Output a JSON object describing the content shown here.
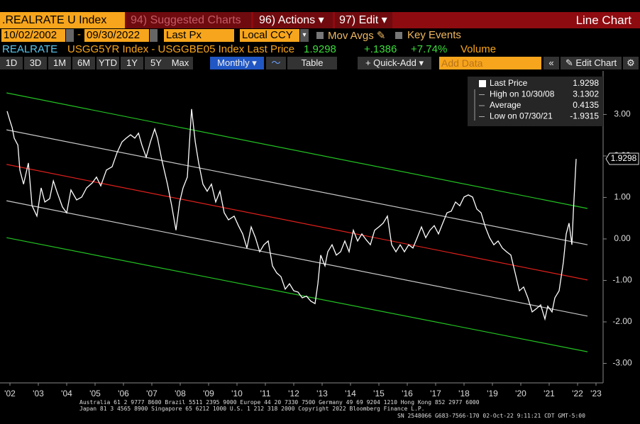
{
  "toolbar": {
    "security": ".REALRATE U Index",
    "suggested": "94) Suggested Charts",
    "actions": "96) Actions",
    "edit": "97) Edit",
    "view": "Line Chart"
  },
  "controls": {
    "start_date": "10/02/2002",
    "dash": "-",
    "end_date": "09/30/2022",
    "field": "Last Px",
    "currency": "Local CCY",
    "mov_avgs": "Mov Avgs",
    "key_events": "Key Events"
  },
  "ticker_line": {
    "name": "REALRATE",
    "description": "USGG5YR Index - USGGBE05 Index Last Price",
    "change": "+.1386",
    "pct_change": "+7.74%",
    "volume": "Volume"
  },
  "buttons": {
    "periods": [
      "1D",
      "3D",
      "1M",
      "6M",
      "YTD",
      "1Y",
      "5Y",
      "Max"
    ],
    "frequency": "Monthly",
    "table": "Table",
    "quick_add": "+ Quick-Add",
    "add_data": "Add Data",
    "edit_chart": "Edit Chart"
  },
  "footer": [
    "Australia 61 2 9777 8600 Brazil 5511 2395 9000 Europe 44 20 7330 7500 Germany 49 69 9204 1210 Hong Kong 852 2977 6000",
    "Japan 81 3 4565 8900      Singapore 65 6212 1000      U.S. 1 212 318 2000      Copyright 2022 Bloomberg Finance L.P.",
    "SN 2548066 G683-7566-170 02-Oct-22  9:11:21 CDT  GMT-5:00"
  ],
  "chart_data": {
    "type": "line",
    "xlim": [
      2002.5,
      2023.75
    ],
    "ylim": [
      -3.47,
      4.05
    ],
    "xticks": [
      {
        "value": 2002.85,
        "label": "'02"
      },
      {
        "value": 2003.85,
        "label": "'03"
      },
      {
        "value": 2004.85,
        "label": "'04"
      },
      {
        "value": 2005.85,
        "label": "'05"
      },
      {
        "value": 2006.85,
        "label": "'06"
      },
      {
        "value": 2007.85,
        "label": "'07"
      },
      {
        "value": 2008.85,
        "label": "'08"
      },
      {
        "value": 2009.85,
        "label": "'09"
      },
      {
        "value": 2010.85,
        "label": "'10"
      },
      {
        "value": 2011.85,
        "label": "'11"
      },
      {
        "value": 2012.85,
        "label": "'12"
      },
      {
        "value": 2013.85,
        "label": "'13"
      },
      {
        "value": 2014.85,
        "label": "'14"
      },
      {
        "value": 2015.85,
        "label": "'15"
      },
      {
        "value": 2016.85,
        "label": "'16"
      },
      {
        "value": 2017.85,
        "label": "'17"
      },
      {
        "value": 2018.85,
        "label": "'18"
      },
      {
        "value": 2019.85,
        "label": "'19"
      },
      {
        "value": 2020.85,
        "label": "'20"
      },
      {
        "value": 2021.85,
        "label": "'21"
      },
      {
        "value": 2022.85,
        "label": "'22"
      },
      {
        "value": 2023.5,
        "label": "'23"
      }
    ],
    "yticks": [
      {
        "value": 3,
        "label": "3.00"
      },
      {
        "value": 2,
        "label": "2.00"
      },
      {
        "value": 1,
        "label": "1.00"
      },
      {
        "value": 0,
        "label": "0.00"
      },
      {
        "value": -1,
        "label": "-1.00"
      },
      {
        "value": -2,
        "label": "-2.00"
      },
      {
        "value": -3,
        "label": "-3.00"
      }
    ],
    "series": [
      {
        "name": "Last Price",
        "color": "#ffffff",
        "x": [
          2002.75,
          2002.85,
          2002.93,
          2003.0,
          2003.13,
          2003.2,
          2003.33,
          2003.5,
          2003.63,
          2003.8,
          2003.95,
          2004.08,
          2004.25,
          2004.38,
          2004.5,
          2004.7,
          2004.85,
          2005.0,
          2005.2,
          2005.38,
          2005.55,
          2005.75,
          2005.9,
          2006.05,
          2006.25,
          2006.45,
          2006.63,
          2006.8,
          2006.95,
          2007.1,
          2007.25,
          2007.38,
          2007.5,
          2007.65,
          2007.8,
          2007.95,
          2008.05,
          2008.2,
          2008.4,
          2008.55,
          2008.7,
          2008.83,
          2008.95,
          2009.1,
          2009.25,
          2009.38,
          2009.5,
          2009.65,
          2009.8,
          2009.95,
          2010.1,
          2010.25,
          2010.4,
          2010.55,
          2010.75,
          2010.9,
          2011.05,
          2011.2,
          2011.35,
          2011.5,
          2011.65,
          2011.8,
          2011.95,
          2012.1,
          2012.25,
          2012.4,
          2012.55,
          2012.7,
          2012.85,
          2013.0,
          2013.15,
          2013.3,
          2013.45,
          2013.6,
          2013.7,
          2013.8,
          2013.95,
          2014.05,
          2014.2,
          2014.35,
          2014.5,
          2014.65,
          2014.8,
          2014.95,
          2015.1,
          2015.25,
          2015.4,
          2015.55,
          2015.7,
          2015.85,
          2016.0,
          2016.15,
          2016.3,
          2016.45,
          2016.6,
          2016.75,
          2016.9,
          2017.05,
          2017.2,
          2017.35,
          2017.5,
          2017.65,
          2017.8,
          2017.95,
          2018.1,
          2018.25,
          2018.4,
          2018.55,
          2018.7,
          2018.85,
          2019.0,
          2019.15,
          2019.3,
          2019.45,
          2019.6,
          2019.75,
          2019.9,
          2020.05,
          2020.2,
          2020.35,
          2020.5,
          2020.65,
          2020.8,
          2020.95,
          2021.1,
          2021.25,
          2021.4,
          2021.55,
          2021.7,
          2021.8,
          2021.95,
          2022.05,
          2022.2,
          2022.35,
          2022.45,
          2022.55,
          2022.65,
          2022.7,
          2022.8
        ],
        "values": [
          3.08,
          2.85,
          2.68,
          2.43,
          2.26,
          1.66,
          1.32,
          1.83,
          0.8,
          0.55,
          1.23,
          0.89,
          0.97,
          1.4,
          1.15,
          0.77,
          0.63,
          1.18,
          0.94,
          1.01,
          1.23,
          1.35,
          1.49,
          1.28,
          1.66,
          1.74,
          2.09,
          2.34,
          2.43,
          2.51,
          2.43,
          2.55,
          2.26,
          1.97,
          2.34,
          2.65,
          2.43,
          1.91,
          1.32,
          0.8,
          0.21,
          0.89,
          1.23,
          1.49,
          3.13,
          2.34,
          1.83,
          1.32,
          1.15,
          1.32,
          0.89,
          1.15,
          0.63,
          0.46,
          0.55,
          0.32,
          0.12,
          -0.22,
          0.29,
          0.03,
          -0.31,
          -0.14,
          -0.05,
          -0.65,
          -0.82,
          -0.91,
          -1.21,
          -1.08,
          -1.25,
          -1.28,
          -1.42,
          -1.38,
          -1.5,
          -1.56,
          -1.08,
          -0.39,
          -0.65,
          -0.31,
          -0.14,
          -0.39,
          -0.31,
          -0.05,
          -0.31,
          0.21,
          -0.05,
          0.12,
          -0.02,
          -0.14,
          0.21,
          0.29,
          0.38,
          0.55,
          -0.14,
          -0.31,
          -0.14,
          -0.31,
          -0.14,
          -0.22,
          0.03,
          0.29,
          0.03,
          0.21,
          0.32,
          0.12,
          0.38,
          0.63,
          0.67,
          0.89,
          0.8,
          1.01,
          1.06,
          1.01,
          0.72,
          0.63,
          0.29,
          0.03,
          -0.14,
          -0.05,
          -0.22,
          -0.31,
          -0.39,
          -0.82,
          -1.25,
          -1.16,
          -1.42,
          -1.76,
          -1.68,
          -1.59,
          -1.93,
          -1.62,
          -1.76,
          -1.42,
          -1.25,
          -0.56,
          0.12,
          0.38,
          -0.14,
          0.63,
          1.9298
        ]
      },
      {
        "color": "#22c322",
        "x": [
          2002.73,
          2023.2
        ],
        "values": [
          3.52,
          0.735
        ]
      },
      {
        "color": "#c8c8c8",
        "x": [
          2002.73,
          2023.2
        ],
        "values": [
          2.63,
          -0.14
        ]
      },
      {
        "color": "#e0201b",
        "x": [
          2002.73,
          2023.2
        ],
        "values": [
          1.795,
          -0.99
        ]
      },
      {
        "color": "#c8c8c8",
        "x": [
          2002.73,
          2023.2
        ],
        "values": [
          0.92,
          -1.86
        ]
      },
      {
        "color": "#22c322",
        "x": [
          2002.73,
          2023.2
        ],
        "values": [
          0.03,
          -2.72
        ]
      }
    ],
    "legend": {
      "position": "top right",
      "stats": [
        {
          "label": "High on 10/30/08",
          "value": 3.1302
        },
        {
          "label": "Average",
          "value": 0.4135
        },
        {
          "label": "Low on 07/30/21",
          "value": -1.9315
        }
      ]
    }
  }
}
